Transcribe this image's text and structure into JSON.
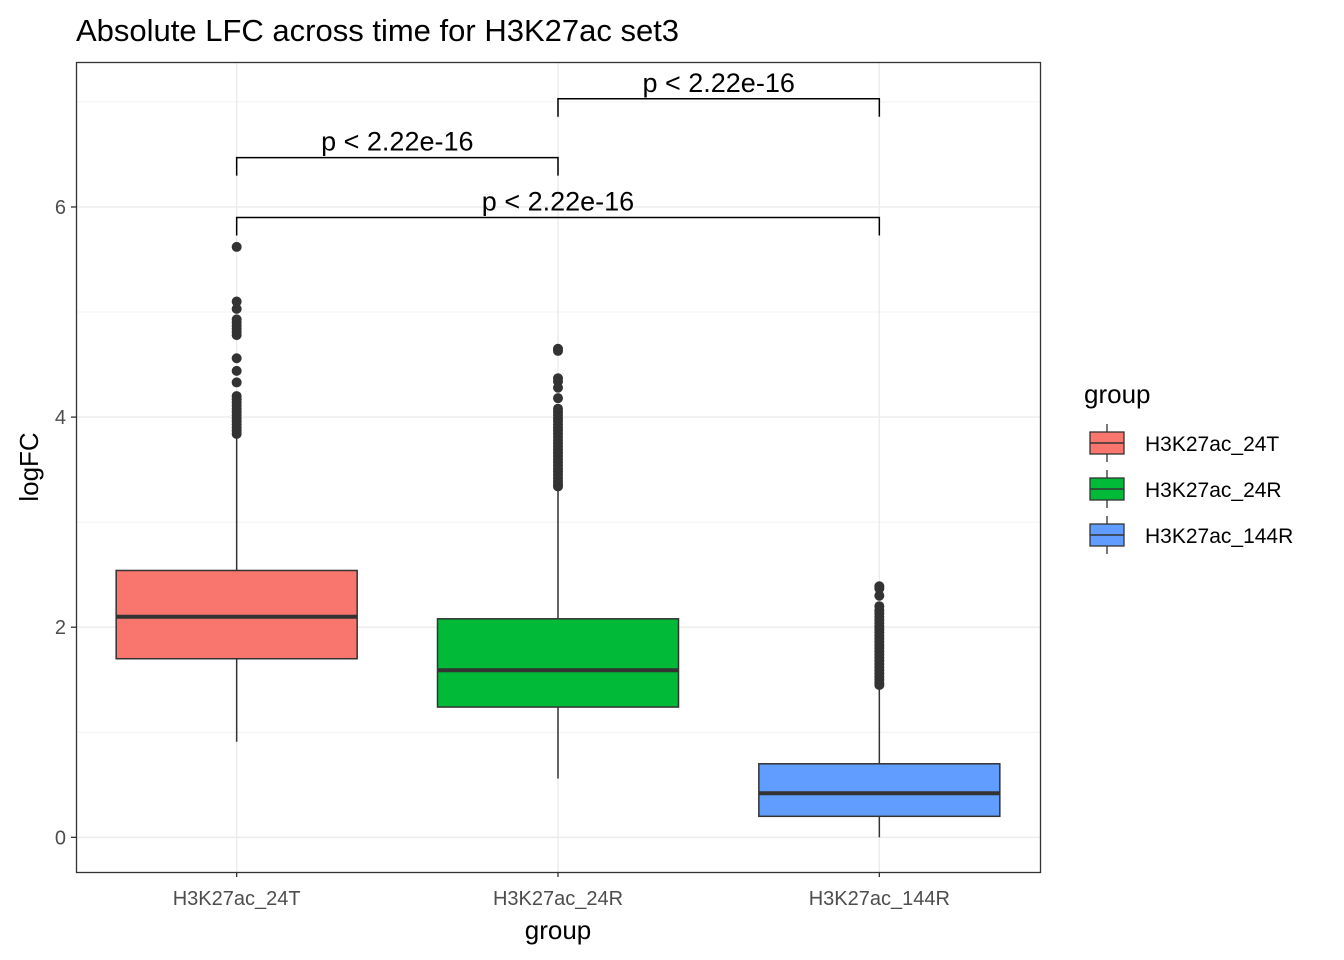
{
  "chart_data": {
    "type": "box",
    "title": "Absolute LFC across time for H3K27ac set3",
    "xlabel": "group",
    "ylabel": "logFC",
    "ylim": [
      -0.33,
      7.38
    ],
    "yticks": [
      0,
      2,
      4,
      6
    ],
    "ytick_labels": [
      "0",
      "2",
      "4",
      "6"
    ],
    "grid": true,
    "categories": [
      "H3K27ac_24T",
      "H3K27ac_24R",
      "H3K27ac_144R"
    ],
    "colors": [
      "#F8766D",
      "#00BA38",
      "#619CFF"
    ],
    "boxes": [
      {
        "name": "H3K27ac_24T",
        "whisker_low": 0.91,
        "q1": 1.7,
        "median": 2.1,
        "q3": 2.54,
        "whisker_high": 3.81,
        "outliers": [
          5.62,
          5.1,
          5.03,
          4.93,
          4.9,
          4.87,
          4.84,
          4.81,
          4.78,
          4.56,
          4.44,
          4.33,
          4.2,
          4.17,
          4.14,
          4.11,
          4.08,
          4.05,
          4.02,
          3.99,
          3.96,
          3.93,
          3.9,
          3.87,
          3.84
        ]
      },
      {
        "name": "H3K27ac_24R",
        "whisker_low": 0.56,
        "q1": 1.24,
        "median": 1.59,
        "q3": 2.08,
        "whisker_high": 3.32,
        "outliers": [
          4.65,
          4.63,
          4.37,
          4.34,
          4.28,
          4.18,
          4.08,
          4.05,
          4.02,
          3.99,
          3.96,
          3.93,
          3.9,
          3.87,
          3.84,
          3.81,
          3.78,
          3.75,
          3.72,
          3.69,
          3.66,
          3.63,
          3.6,
          3.57,
          3.54,
          3.51,
          3.48,
          3.45,
          3.42,
          3.39,
          3.36,
          3.34
        ]
      },
      {
        "name": "H3K27ac_144R",
        "whisker_low": 0.0,
        "q1": 0.2,
        "median": 0.42,
        "q3": 0.7,
        "whisker_high": 1.43,
        "outliers": [
          2.39,
          2.37,
          2.3,
          2.2,
          2.16,
          2.13,
          2.1,
          2.07,
          2.04,
          2.01,
          1.98,
          1.95,
          1.92,
          1.89,
          1.86,
          1.83,
          1.8,
          1.77,
          1.74,
          1.71,
          1.68,
          1.65,
          1.62,
          1.59,
          1.56,
          1.53,
          1.5,
          1.47,
          1.45
        ]
      }
    ],
    "comparisons": [
      {
        "from": 0,
        "to": 1,
        "y": 6.47,
        "label": "p < 2.22e-16"
      },
      {
        "from": 1,
        "to": 2,
        "y": 7.03,
        "label": "p < 2.22e-16"
      },
      {
        "from": 0,
        "to": 2,
        "y": 5.9,
        "label": "p < 2.22e-16"
      }
    ],
    "legend": {
      "title": "group",
      "placement": "right",
      "entries": [
        "H3K27ac_24T",
        "H3K27ac_24R",
        "H3K27ac_144R"
      ]
    }
  }
}
